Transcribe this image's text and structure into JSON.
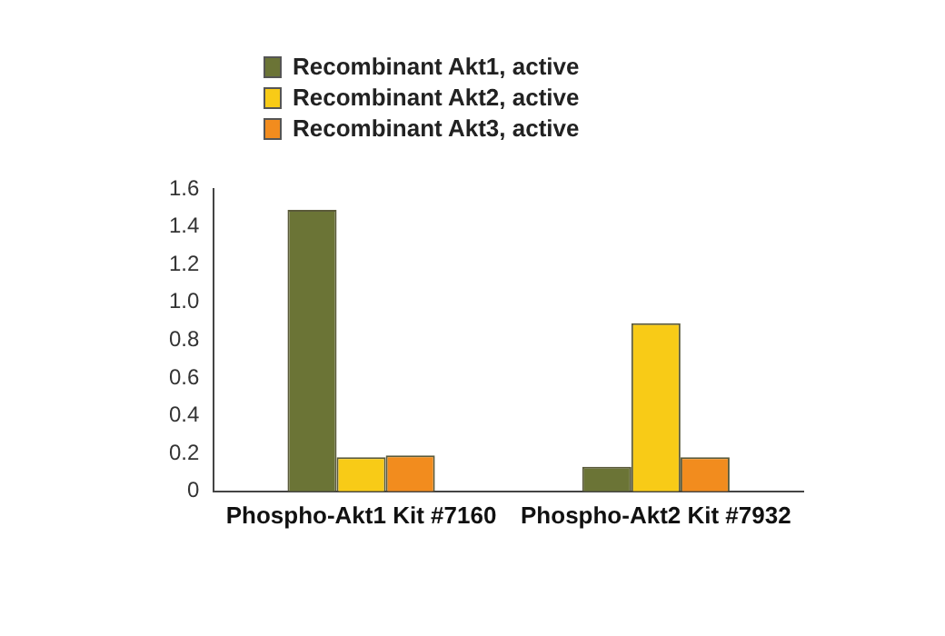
{
  "chart_data": {
    "type": "bar",
    "categories": [
      "Phospho-Akt1 Kit #7160",
      "Phospho-Akt2 Kit #7932"
    ],
    "series": [
      {
        "name": "Recombinant Akt1, active",
        "color": "#6b7436",
        "values": [
          1.49,
          0.13
        ]
      },
      {
        "name": "Recombinant Akt2, active",
        "color": "#f8cb17",
        "values": [
          0.18,
          0.89
        ]
      },
      {
        "name": "Recombinant Akt3, active",
        "color": "#f28c1e",
        "values": [
          0.19,
          0.18
        ]
      }
    ],
    "ylim": [
      0,
      1.6
    ],
    "yticks": [
      0,
      {
        "value": 0.2,
        "label": "0.2"
      },
      {
        "value": 0.4,
        "label": "0.4"
      },
      {
        "value": 0.6,
        "label": "0.6"
      },
      {
        "value": 0.8,
        "label": "0.8"
      },
      {
        "value": 1,
        "label": "1.0"
      },
      {
        "value": 1.2,
        "label": "1.2"
      },
      {
        "value": 1.4,
        "label": "1.4"
      },
      {
        "value": 1.6,
        "label": "1.6"
      }
    ],
    "grid": false,
    "legend": "top left"
  }
}
